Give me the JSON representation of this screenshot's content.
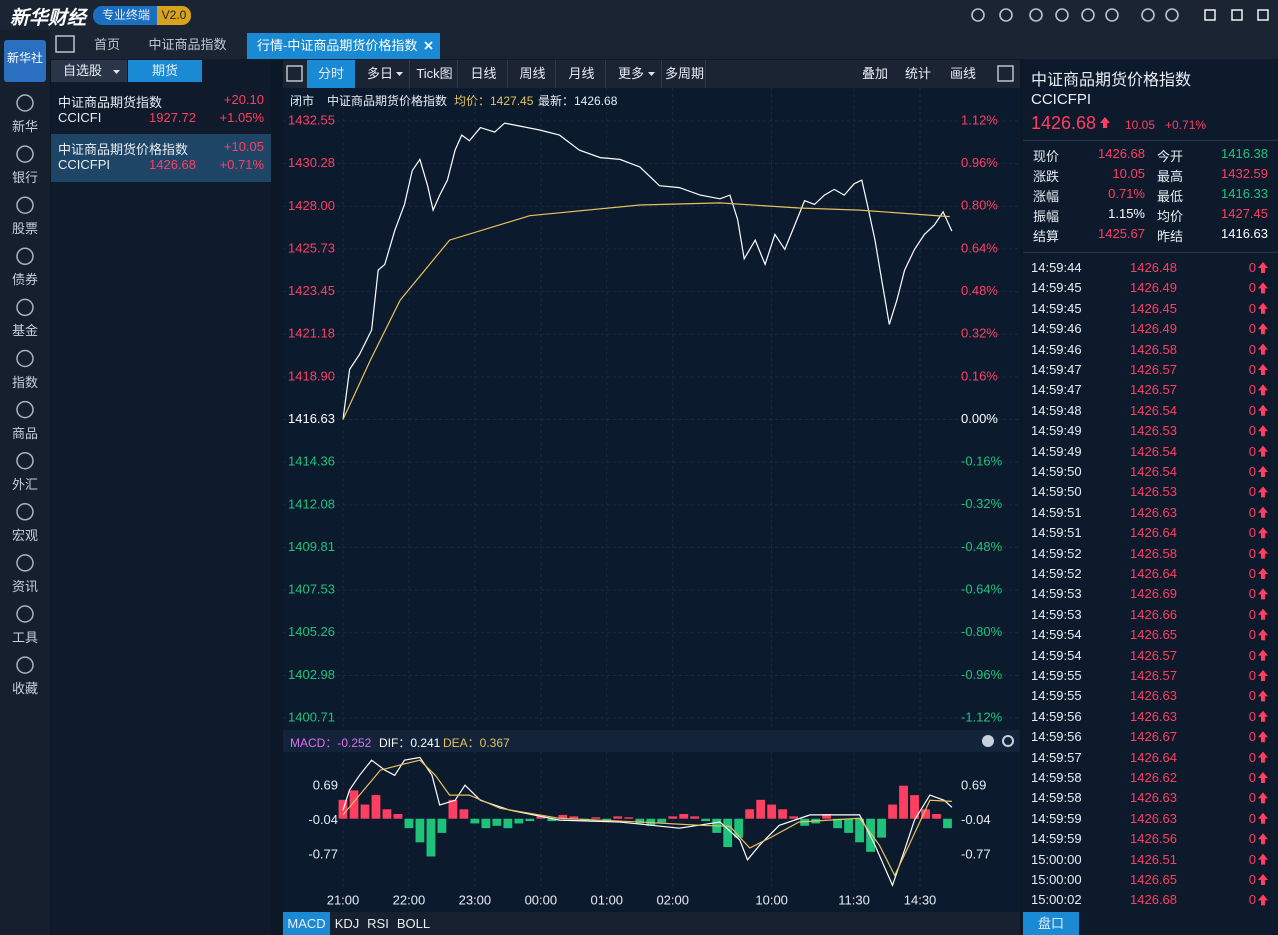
{
  "header": {
    "logo": "新华财经",
    "badge": "专业终端",
    "version": "V2.0",
    "logo_box": "新华社"
  },
  "sidebar": [
    "新华",
    "银行",
    "股票",
    "债券",
    "基金",
    "指数",
    "商品",
    "外汇",
    "宏观",
    "资讯",
    "工具",
    "收藏"
  ],
  "tabs": [
    "首页",
    "中证商品指数",
    "行情-中证商品期货价格指数"
  ],
  "watchlist": {
    "tabs": [
      "自选股",
      "期货"
    ],
    "items": [
      {
        "name": "中证商品期货指数",
        "change": "+20.10",
        "code": "CCICFI",
        "price": "1927.72",
        "pct": "+1.05%"
      },
      {
        "name": "中证商品期货价格指数",
        "change": "+10.05",
        "code": "CCICFPI",
        "price": "1426.68",
        "pct": "+0.71%"
      }
    ]
  },
  "toolbar": [
    "分时",
    "多日",
    "Tick图",
    "日线",
    "周线",
    "月线",
    "更多",
    "多周期"
  ],
  "toolbar_right": [
    "叠加",
    "统计",
    "画线"
  ],
  "info": {
    "status": "闭市",
    "name": "中证商品期货价格指数",
    "avg": "均价：1427.45",
    "last": "最新：1426.68"
  },
  "macd_header": [
    "MACD：-0.252",
    "DIF：0.241",
    "DEA：0.367"
  ],
  "indicator_tabs": [
    "MACD",
    "KDJ",
    "RSI",
    "BOLL"
  ],
  "quote": {
    "name": "中证商品期货价格指数",
    "code": "CCICFPI",
    "price": "1426.68",
    "change": "10.05",
    "pct": "+0.71%",
    "stats": [
      [
        {
          "label": "现价",
          "value": "1426.68",
          "color": "#ff3f62"
        },
        {
          "label": "今开",
          "value": "1416.38",
          "color": "#22c57e"
        }
      ],
      [
        {
          "label": "涨跌",
          "value": "10.05",
          "color": "#ff3f62"
        },
        {
          "label": "最高",
          "value": "1432.59",
          "color": "#ff3f62"
        }
      ],
      [
        {
          "label": "涨幅",
          "value": "0.71%",
          "color": "#ff3f62"
        },
        {
          "label": "最低",
          "value": "1416.33",
          "color": "#22c57e"
        }
      ],
      [
        {
          "label": "振幅",
          "value": "1.15%",
          "color": "#ffffff"
        },
        {
          "label": "均价",
          "value": "1427.45",
          "color": "#ff3f62"
        }
      ],
      [
        {
          "label": "结算",
          "value": "1425.67",
          "color": "#ff3f62"
        },
        {
          "label": "昨结",
          "value": "1416.63",
          "color": "#ffffff"
        }
      ]
    ],
    "ticks": [
      [
        "14:59:44",
        "1426.48",
        "0"
      ],
      [
        "14:59:45",
        "1426.49",
        "0"
      ],
      [
        "14:59:45",
        "1426.45",
        "0"
      ],
      [
        "14:59:46",
        "1426.49",
        "0"
      ],
      [
        "14:59:46",
        "1426.58",
        "0"
      ],
      [
        "14:59:47",
        "1426.57",
        "0"
      ],
      [
        "14:59:47",
        "1426.57",
        "0"
      ],
      [
        "14:59:48",
        "1426.54",
        "0"
      ],
      [
        "14:59:49",
        "1426.53",
        "0"
      ],
      [
        "14:59:49",
        "1426.54",
        "0"
      ],
      [
        "14:59:50",
        "1426.54",
        "0"
      ],
      [
        "14:59:50",
        "1426.53",
        "0"
      ],
      [
        "14:59:51",
        "1426.63",
        "0"
      ],
      [
        "14:59:51",
        "1426.64",
        "0"
      ],
      [
        "14:59:52",
        "1426.58",
        "0"
      ],
      [
        "14:59:52",
        "1426.64",
        "0"
      ],
      [
        "14:59:53",
        "1426.69",
        "0"
      ],
      [
        "14:59:53",
        "1426.66",
        "0"
      ],
      [
        "14:59:54",
        "1426.65",
        "0"
      ],
      [
        "14:59:54",
        "1426.57",
        "0"
      ],
      [
        "14:59:55",
        "1426.57",
        "0"
      ],
      [
        "14:59:55",
        "1426.63",
        "0"
      ],
      [
        "14:59:56",
        "1426.63",
        "0"
      ],
      [
        "14:59:56",
        "1426.67",
        "0"
      ],
      [
        "14:59:57",
        "1426.64",
        "0"
      ],
      [
        "14:59:58",
        "1426.62",
        "0"
      ],
      [
        "14:59:58",
        "1426.63",
        "0"
      ],
      [
        "14:59:59",
        "1426.63",
        "0"
      ],
      [
        "14:59:59",
        "1426.56",
        "0"
      ],
      [
        "15:00:00",
        "1426.51",
        "0"
      ],
      [
        "15:00:00",
        "1426.65",
        "0"
      ],
      [
        "15:00:02",
        "1426.68",
        "0"
      ]
    ],
    "tab": "盘口"
  },
  "chart_data": [
    {
      "type": "line",
      "xlim": [
        0,
        555
      ],
      "ylim": [
        1400.71,
        1432.55
      ],
      "xticks": [
        {
          "value": 0,
          "label": "21:00"
        },
        {
          "value": 60,
          "label": "22:00"
        },
        {
          "value": 120,
          "label": "23:00"
        },
        {
          "value": 180,
          "label": "00:00"
        },
        {
          "value": 240,
          "label": "01:00"
        },
        {
          "value": 300,
          "label": "02:00"
        },
        {
          "value": 390,
          "label": "10:00"
        },
        {
          "value": 465,
          "label": "11:30"
        },
        {
          "value": 525,
          "label": "14:30"
        }
      ],
      "yticks": [
        1432.55,
        1430.28,
        {
          "value": 1428,
          "label": "1428.00"
        },
        1425.73,
        1423.45,
        1421.18,
        {
          "value": 1418.9,
          "label": "1418.90"
        },
        1416.63,
        1414.36,
        1412.08,
        1409.81,
        1407.53,
        1405.26,
        1402.98,
        1400.71
      ],
      "y2lim": [
        -1.12,
        1.12
      ],
      "y2ticks": [
        {
          "value": 1.12,
          "label": "1.12%"
        },
        {
          "value": 0.96,
          "label": "0.96%"
        },
        {
          "value": 0.8,
          "label": "0.80%"
        },
        {
          "value": 0.64,
          "label": "0.64%"
        },
        {
          "value": 0.48,
          "label": "0.48%"
        },
        {
          "value": 0.32,
          "label": "0.32%"
        },
        {
          "value": 0.16,
          "label": "0.16%"
        },
        {
          "value": 0,
          "label": "0.00%"
        },
        {
          "value": -0.16,
          "label": "-0.16%"
        },
        {
          "value": -0.32,
          "label": "-0.32%"
        },
        {
          "value": -0.48,
          "label": "-0.48%"
        },
        {
          "value": -0.64,
          "label": "-0.64%"
        },
        {
          "value": -0.8,
          "label": "-0.80%"
        },
        {
          "value": -0.96,
          "label": "-0.96%"
        },
        {
          "value": -1.12,
          "label": "-1.12%"
        }
      ],
      "grid": true,
      "series": [
        {
          "name": "最新",
          "color": "#ffffff",
          "x": [
            0,
            6,
            15,
            26,
            32,
            38,
            47,
            56,
            63,
            70,
            77,
            82,
            88,
            95,
            102,
            108,
            115,
            125,
            138,
            147,
            161,
            179,
            197,
            215,
            234,
            252,
            270,
            288,
            306,
            325,
            343,
            352,
            359,
            365,
            375,
            384,
            393,
            402,
            411,
            420,
            429,
            438,
            447,
            456,
            465,
            472,
            477,
            484,
            490,
            497,
            504,
            511,
            520,
            529,
            538,
            546,
            554
          ],
          "values": [
            1416.63,
            1419.3,
            1420.1,
            1421.4,
            1424.6,
            1424.9,
            1426.7,
            1428.1,
            1429.9,
            1430.5,
            1429.1,
            1427.8,
            1428.6,
            1429.4,
            1431,
            1431.8,
            1431.5,
            1432.2,
            1431.96,
            1432.44,
            1432.28,
            1432.07,
            1431.8,
            1431,
            1430.6,
            1430.5,
            1430.1,
            1429.1,
            1429,
            1428.6,
            1428.4,
            1428.6,
            1427.3,
            1425.2,
            1426.2,
            1424.9,
            1426.5,
            1425.7,
            1427,
            1428.3,
            1428.1,
            1428.6,
            1428.9,
            1428.6,
            1429.2,
            1429.4,
            1428.1,
            1426.2,
            1424.1,
            1421.7,
            1423,
            1424.6,
            1425.7,
            1426.5,
            1427,
            1427.7,
            1426.68
          ]
        },
        {
          "name": "均价",
          "color": "#e5c25e",
          "x": [
            0,
            25,
            52,
            97,
            170,
            270,
            343,
            415,
            470,
            552
          ],
          "values": [
            1416.63,
            1419.81,
            1423,
            1426.2,
            1427.5,
            1428.07,
            1428.18,
            1427.91,
            1427.8,
            1427.45
          ]
        }
      ]
    },
    {
      "type": "macd",
      "xlim": [
        0,
        555
      ],
      "ylim": [
        -1.51,
        1.35
      ],
      "yticks": [
        0.69,
        -0.04,
        -0.77
      ],
      "y2ticks": [
        0.69,
        -0.04,
        -0.77
      ],
      "series": [
        {
          "name": "DIF",
          "type": "line",
          "color": "#ffffff",
          "x": [
            0,
            6,
            15,
            26,
            38,
            47,
            56,
            70,
            81,
            88,
            102,
            111,
            125,
            152,
            197,
            252,
            306,
            343,
            361,
            368,
            379,
            397,
            425,
            470,
            484,
            500,
            511,
            520,
            534,
            547,
            554
          ],
          "values": [
            0.18,
            0.61,
            0.92,
            1.24,
            1.03,
            0.92,
            1.24,
            1.3,
            0.92,
            0.29,
            0.39,
            0.71,
            0.39,
            0.18,
            -0.03,
            -0.07,
            -0.2,
            -0.07,
            -0.45,
            -0.87,
            -0.56,
            -0.14,
            0.08,
            0.08,
            -0.56,
            -1.41,
            -0.66,
            -0.03,
            0.5,
            0.39,
            0.241
          ]
        },
        {
          "name": "DEA",
          "type": "line",
          "color": "#e5c25e",
          "x": [
            0,
            15,
            34,
            52,
            70,
            84,
            97,
            115,
            143,
            197,
            270,
            325,
            352,
            370,
            388,
            415,
            470,
            488,
            502,
            515,
            534,
            554
          ],
          "values": [
            0.08,
            0.5,
            1.03,
            1.14,
            1.24,
            0.92,
            0.5,
            0.5,
            0.22,
            0.01,
            -0.07,
            -0.14,
            -0.16,
            -0.62,
            -0.41,
            -0.07,
            0.01,
            -0.56,
            -1.2,
            -0.56,
            0.39,
            0.367
          ]
        },
        {
          "name": "MACD",
          "type": "bar",
          "color": "#ff3f62",
          "negative_color": "#1fc27a",
          "x": [
            0,
            10,
            20,
            30,
            40,
            50,
            60,
            70,
            80,
            90,
            100,
            110,
            120,
            130,
            140,
            150,
            160,
            170,
            180,
            190,
            200,
            210,
            220,
            230,
            240,
            250,
            260,
            270,
            280,
            290,
            300,
            310,
            320,
            330,
            340,
            350,
            360,
            370,
            380,
            390,
            400,
            410,
            420,
            430,
            440,
            450,
            460,
            470,
            480,
            490,
            500,
            510,
            520,
            530,
            540,
            550
          ],
          "values": [
            0.4,
            0.6,
            0.3,
            0.5,
            0.2,
            0.1,
            -0.2,
            -0.5,
            -0.8,
            -0.3,
            0.4,
            0.2,
            -0.1,
            -0.2,
            -0.15,
            -0.2,
            -0.1,
            -0.05,
            0.05,
            -0.05,
            0.08,
            0.05,
            -0.05,
            0.03,
            -0.05,
            0.05,
            0.03,
            -0.1,
            -0.15,
            -0.08,
            0.05,
            0.1,
            0.05,
            -0.05,
            -0.3,
            -0.6,
            -0.4,
            0.2,
            0.4,
            0.3,
            0.2,
            0.05,
            -0.15,
            -0.1,
            0.1,
            -0.2,
            -0.3,
            -0.5,
            -0.7,
            -0.4,
            0.3,
            0.7,
            0.5,
            0.2,
            0.1,
            -0.2
          ]
        }
      ]
    }
  ]
}
